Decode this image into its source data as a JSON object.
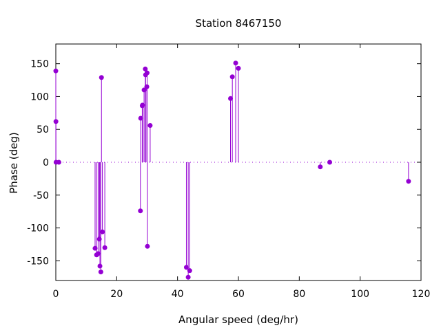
{
  "chart_data": {
    "type": "scatter",
    "style": "impulses-with-points",
    "title": "Station 8467150",
    "xlabel": "Angular speed (deg/hr)",
    "ylabel": "Phase (deg)",
    "xlim": [
      0,
      120
    ],
    "ylim": [
      -180,
      180
    ],
    "xticks": [
      0,
      20,
      40,
      60,
      80,
      100,
      120
    ],
    "yticks": [
      -150,
      -100,
      -50,
      0,
      50,
      100,
      150
    ],
    "grid": false,
    "zero_line": true,
    "legend": "none",
    "color": "#9400d3",
    "points": [
      {
        "x": 0.0,
        "y": 139
      },
      {
        "x": 0.04,
        "y": 62
      },
      {
        "x": 0.08,
        "y": 0
      },
      {
        "x": 1.0,
        "y": 0
      },
      {
        "x": 12.9,
        "y": -131
      },
      {
        "x": 13.4,
        "y": -141
      },
      {
        "x": 13.9,
        "y": -139
      },
      {
        "x": 14.3,
        "y": -117
      },
      {
        "x": 14.5,
        "y": -158
      },
      {
        "x": 14.8,
        "y": -167
      },
      {
        "x": 15.0,
        "y": 129
      },
      {
        "x": 15.3,
        "y": -106
      },
      {
        "x": 16.1,
        "y": -130
      },
      {
        "x": 27.8,
        "y": -74
      },
      {
        "x": 27.9,
        "y": 67
      },
      {
        "x": 28.4,
        "y": 86
      },
      {
        "x": 28.5,
        "y": 87
      },
      {
        "x": 29.0,
        "y": 110
      },
      {
        "x": 29.4,
        "y": 142
      },
      {
        "x": 29.5,
        "y": 133
      },
      {
        "x": 29.9,
        "y": 115
      },
      {
        "x": 30.0,
        "y": 136
      },
      {
        "x": 30.1,
        "y": -128
      },
      {
        "x": 31.0,
        "y": 56
      },
      {
        "x": 42.9,
        "y": -160
      },
      {
        "x": 43.5,
        "y": -175
      },
      {
        "x": 44.0,
        "y": -165
      },
      {
        "x": 57.4,
        "y": 97
      },
      {
        "x": 58.0,
        "y": 130
      },
      {
        "x": 59.1,
        "y": 151
      },
      {
        "x": 60.0,
        "y": 143
      },
      {
        "x": 86.9,
        "y": -7
      },
      {
        "x": 90.0,
        "y": 0
      },
      {
        "x": 115.9,
        "y": -29
      }
    ]
  }
}
